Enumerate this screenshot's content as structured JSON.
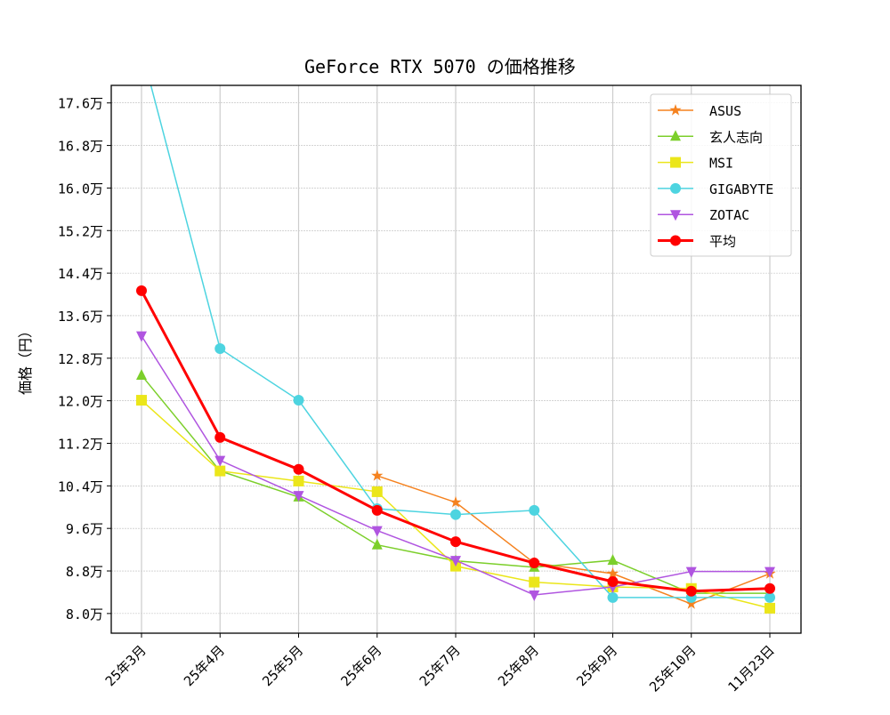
{
  "chart_data": {
    "type": "line",
    "title": "GeForce RTX 5070 の価格推移",
    "xlabel": "",
    "ylabel": "価格（円）",
    "y_unit_suffix": "万",
    "ylim": [
      7.63,
      17.93
    ],
    "yticks": [
      8.0,
      8.8,
      9.6,
      10.4,
      11.2,
      12.0,
      12.8,
      13.6,
      14.4,
      15.2,
      16.0,
      16.8,
      17.6
    ],
    "ytick_labels": [
      "8.0万",
      "8.8万",
      "9.6万",
      "10.4万",
      "11.2万",
      "12.0万",
      "12.8万",
      "13.6万",
      "14.4万",
      "15.2万",
      "16.0万",
      "16.8万",
      "17.6万"
    ],
    "categories": [
      "25年3月",
      "25年4月",
      "25年5月",
      "25年6月",
      "25年7月",
      "25年8月",
      "25年9月",
      "25年10月",
      "11月23日"
    ],
    "grid": true,
    "legend_position": "top-right",
    "series": [
      {
        "name": "ASUS",
        "color": "#f5821f",
        "marker": "star",
        "values": [
          null,
          null,
          null,
          10.59,
          10.09,
          8.95,
          8.75,
          8.18,
          8.75
        ]
      },
      {
        "name": "玄人志向",
        "color": "#7ccf2b",
        "marker": "triangle-up",
        "values": [
          12.48,
          10.68,
          10.19,
          9.29,
          8.99,
          8.87,
          9.0,
          8.38,
          8.38
        ]
      },
      {
        "name": "MSI",
        "color": "#ebe61a",
        "marker": "square",
        "values": [
          12.01,
          10.68,
          10.49,
          10.29,
          8.89,
          8.59,
          8.5,
          8.47,
          8.1
        ]
      },
      {
        "name": "GIGABYTE",
        "color": "#4dd4e0",
        "marker": "circle",
        "values": [
          18.6,
          12.98,
          12.01,
          9.97,
          9.86,
          9.94,
          8.3,
          8.3,
          8.3
        ]
      },
      {
        "name": "ZOTAC",
        "color": "#b055e0",
        "marker": "triangle-down",
        "values": [
          13.22,
          10.88,
          10.22,
          9.56,
          9.0,
          8.35,
          8.5,
          8.79,
          8.79
        ]
      },
      {
        "name": "平均",
        "color": "#ff0000",
        "marker": "circle",
        "bold": true,
        "values": [
          14.07,
          11.31,
          10.71,
          9.94,
          9.35,
          8.95,
          8.6,
          8.42,
          8.47
        ]
      }
    ]
  }
}
